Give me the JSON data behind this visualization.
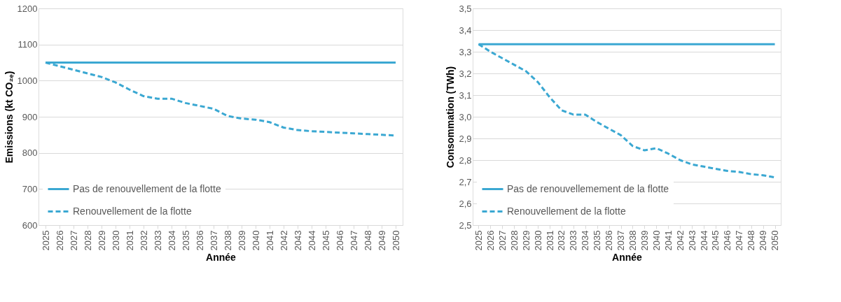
{
  "chart_data": [
    {
      "type": "line",
      "xlabel": "Année",
      "ylabel": "Emissions (kt CO₂ₑ)",
      "categories": [
        "2025",
        "2026",
        "2027",
        "2028",
        "2029",
        "2030",
        "2031",
        "2032",
        "2033",
        "2034",
        "2035",
        "2036",
        "2037",
        "2038",
        "2039",
        "2040",
        "2041",
        "2042",
        "2043",
        "2044",
        "2045",
        "2046",
        "2047",
        "2048",
        "2049",
        "2050"
      ],
      "series": [
        {
          "name": "Pas de renouvellement de la flotte",
          "color": "#3ba8d2",
          "line_style": "solid",
          "values": [
            1050,
            1050,
            1050,
            1050,
            1050,
            1050,
            1050,
            1050,
            1050,
            1050,
            1050,
            1050,
            1050,
            1050,
            1050,
            1050,
            1050,
            1050,
            1050,
            1050,
            1050,
            1050,
            1050,
            1050,
            1050,
            1050
          ]
        },
        {
          "name": "Renouvellement de la flotte",
          "color": "#3ba8d2",
          "line_style": "dashed",
          "values": [
            1050,
            1040,
            1030,
            1020,
            1010,
            995,
            975,
            957,
            950,
            950,
            938,
            930,
            922,
            902,
            895,
            892,
            885,
            870,
            863,
            860,
            858,
            856,
            854,
            852,
            850,
            848
          ]
        }
      ],
      "ylim": [
        600,
        1200
      ],
      "yticks": [
        600,
        700,
        800,
        900,
        1000,
        1100,
        1200
      ],
      "grid": "y",
      "legend": "bottom left",
      "marker": "none"
    },
    {
      "type": "line",
      "xlabel": "Année",
      "ylabel": "Consommation (TWh)",
      "categories": [
        "2025",
        "2026",
        "2027",
        "2028",
        "2029",
        "2030",
        "2031",
        "2032",
        "2033",
        "2034",
        "2035",
        "2036",
        "2037",
        "2038",
        "2039",
        "2040",
        "2041",
        "2042",
        "2043",
        "2044",
        "2045",
        "2046",
        "2047",
        "2048",
        "2049",
        "2050"
      ],
      "series": [
        {
          "name": "Pas de renouvellemement de la flotte",
          "color": "#3ba8d2",
          "line_style": "solid",
          "values": [
            3.335,
            3.335,
            3.335,
            3.335,
            3.335,
            3.335,
            3.335,
            3.335,
            3.335,
            3.335,
            3.335,
            3.335,
            3.335,
            3.335,
            3.335,
            3.335,
            3.335,
            3.335,
            3.335,
            3.335,
            3.335,
            3.335,
            3.335,
            3.335,
            3.335,
            3.335
          ]
        },
        {
          "name": "Renouvellement de la flotte",
          "color": "#3ba8d2",
          "line_style": "dashed",
          "values": [
            3.335,
            3.3,
            3.27,
            3.24,
            3.21,
            3.16,
            3.09,
            3.03,
            3.01,
            3.01,
            2.975,
            2.945,
            2.915,
            2.865,
            2.845,
            2.855,
            2.83,
            2.8,
            2.78,
            2.77,
            2.76,
            2.75,
            2.745,
            2.735,
            2.73,
            2.72
          ]
        }
      ],
      "ylim": [
        2.5,
        3.5
      ],
      "yticks": [
        {
          "value": 2.5,
          "label": "2,5"
        },
        {
          "value": 2.6,
          "label": "2,6"
        },
        {
          "value": 2.7,
          "label": "2,7"
        },
        {
          "value": 2.8,
          "label": "2,8"
        },
        {
          "value": 2.9,
          "label": "2,9"
        },
        {
          "value": 3.0,
          "label": "3,0"
        },
        {
          "value": 3.1,
          "label": "3,1"
        },
        {
          "value": 3.2,
          "label": "3,2"
        },
        {
          "value": 3.3,
          "label": "3,3"
        },
        {
          "value": 3.4,
          "label": "3,4"
        },
        {
          "value": 3.5,
          "label": "3,5"
        }
      ],
      "grid": "y",
      "legend": "bottom left",
      "marker": "none"
    }
  ]
}
